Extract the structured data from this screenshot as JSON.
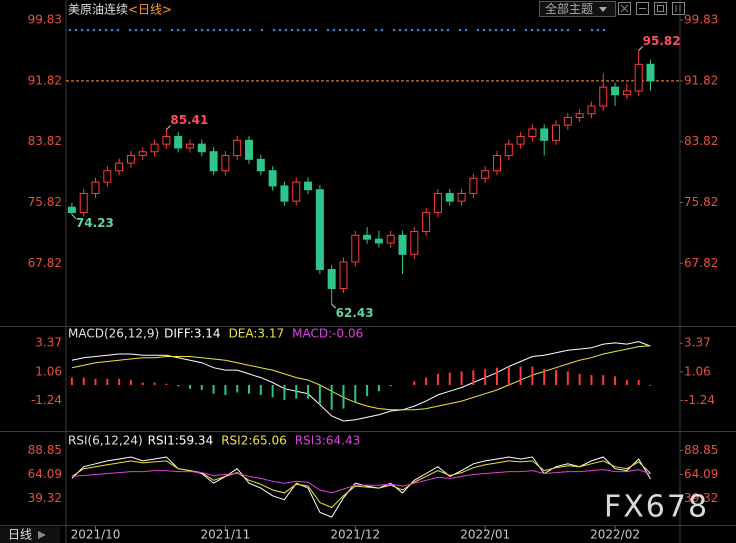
{
  "header": {
    "title": "美原油连续",
    "period": "<日线>",
    "theme_button": "全部主题"
  },
  "footer": {
    "period": "日线"
  },
  "watermark": "FX678",
  "chart_data": [
    {
      "type": "candlestick",
      "xlim": [
        -0.5,
        51.5
      ],
      "ylim": [
        59.7,
        101.15
      ],
      "yticks": [
        99.83,
        91.82,
        83.82,
        75.82,
        67.82
      ],
      "xticks": [
        {
          "value": 2,
          "label": "2021/10"
        },
        {
          "value": 13,
          "label": "2021/11"
        },
        {
          "value": 24,
          "label": "2021/12"
        },
        {
          "value": 35,
          "label": "2022/01"
        },
        {
          "value": 46,
          "label": "2022/02"
        }
      ],
      "up_color": "#ff3b3b",
      "down_color": "#2fc58a",
      "last_price": 91.82,
      "last_color": "#ff9a2e",
      "annotations": [
        {
          "index": 8,
          "value": 85.41,
          "position": "above",
          "color": "#ff4d5e"
        },
        {
          "index": 0,
          "value": 74.23,
          "position": "below",
          "color": "#5fd3a0"
        },
        {
          "index": 22,
          "value": 62.43,
          "position": "below",
          "color": "#5fd3a0"
        },
        {
          "index": 48,
          "value": 95.82,
          "position": "above",
          "color": "#ff4d5e"
        }
      ],
      "candles": [
        [
          75.2,
          75.8,
          74.23,
          74.5
        ],
        [
          74.5,
          77.6,
          74.0,
          77.0
        ],
        [
          77.0,
          79.1,
          76.4,
          78.5
        ],
        [
          78.5,
          80.6,
          77.9,
          80.0
        ],
        [
          80.0,
          81.6,
          79.4,
          81.0
        ],
        [
          81.0,
          82.6,
          80.4,
          82.0
        ],
        [
          82.0,
          83.1,
          81.4,
          82.5
        ],
        [
          82.5,
          84.1,
          81.9,
          83.5
        ],
        [
          83.5,
          85.41,
          82.9,
          84.5
        ],
        [
          84.5,
          85.1,
          82.4,
          83.0
        ],
        [
          83.0,
          84.1,
          82.4,
          83.5
        ],
        [
          83.5,
          84.1,
          81.9,
          82.5
        ],
        [
          82.5,
          83.1,
          79.4,
          80.0
        ],
        [
          80.0,
          82.6,
          79.4,
          82.0
        ],
        [
          82.0,
          84.6,
          81.4,
          84.0
        ],
        [
          84.0,
          84.6,
          80.9,
          81.5
        ],
        [
          81.5,
          82.1,
          79.4,
          80.0
        ],
        [
          80.0,
          80.6,
          77.4,
          78.0
        ],
        [
          78.0,
          78.6,
          75.4,
          76.0
        ],
        [
          76.0,
          79.1,
          75.4,
          78.5
        ],
        [
          78.5,
          79.1,
          76.9,
          77.5
        ],
        [
          77.5,
          78.1,
          66.4,
          67.0
        ],
        [
          67.0,
          67.6,
          62.43,
          64.5
        ],
        [
          64.5,
          68.6,
          63.9,
          68.0
        ],
        [
          68.0,
          72.1,
          67.4,
          71.5
        ],
        [
          71.5,
          72.6,
          70.4,
          71.0
        ],
        [
          71.0,
          72.1,
          69.9,
          70.5
        ],
        [
          70.5,
          72.1,
          69.9,
          71.5
        ],
        [
          71.5,
          72.1,
          66.4,
          69.0
        ],
        [
          69.0,
          72.6,
          68.4,
          72.0
        ],
        [
          72.0,
          75.1,
          71.4,
          74.5
        ],
        [
          74.5,
          77.6,
          73.9,
          77.0
        ],
        [
          77.0,
          77.6,
          75.4,
          76.0
        ],
        [
          76.0,
          77.6,
          75.4,
          77.0
        ],
        [
          77.0,
          79.6,
          76.4,
          79.0
        ],
        [
          79.0,
          80.6,
          78.4,
          80.0
        ],
        [
          80.0,
          82.6,
          79.4,
          82.0
        ],
        [
          82.0,
          84.1,
          81.4,
          83.5
        ],
        [
          83.5,
          85.1,
          82.9,
          84.5
        ],
        [
          84.5,
          86.1,
          83.9,
          85.5
        ],
        [
          85.5,
          86.1,
          82.0,
          84.0
        ],
        [
          84.0,
          86.6,
          83.4,
          86.0
        ],
        [
          86.0,
          87.6,
          85.4,
          87.0
        ],
        [
          87.0,
          88.1,
          86.4,
          87.5
        ],
        [
          87.5,
          89.1,
          86.9,
          88.5
        ],
        [
          88.5,
          92.8,
          87.9,
          91.0
        ],
        [
          91.0,
          91.6,
          88.5,
          90.0
        ],
        [
          90.0,
          91.5,
          89.4,
          90.5
        ],
        [
          90.5,
          95.82,
          89.9,
          94.0
        ],
        [
          94.0,
          94.6,
          90.5,
          91.82
        ]
      ]
    },
    {
      "type": "macd",
      "title": "MACD(26,12,9)",
      "ylim": [
        -3.63,
        4.6
      ],
      "yticks": [
        3.37,
        1.06,
        -1.24
      ],
      "up_color": "#ff3b3b",
      "down_color": "#2fc58a",
      "series": [
        {
          "name": "DIFF:3.14",
          "color": "#ffffff",
          "style": "line",
          "values": [
            2.0,
            2.2,
            2.3,
            2.4,
            2.5,
            2.5,
            2.4,
            2.4,
            2.4,
            2.2,
            2.0,
            1.8,
            1.4,
            1.2,
            1.2,
            0.9,
            0.6,
            0.2,
            -0.3,
            -0.5,
            -0.7,
            -1.6,
            -2.5,
            -2.9,
            -2.8,
            -2.6,
            -2.4,
            -2.1,
            -2.0,
            -1.7,
            -1.3,
            -0.8,
            -0.5,
            -0.2,
            0.2,
            0.6,
            1.0,
            1.5,
            1.9,
            2.3,
            2.4,
            2.6,
            2.8,
            2.9,
            3.0,
            3.3,
            3.4,
            3.3,
            3.5,
            3.14
          ]
        },
        {
          "name": "DEA:3.17",
          "color": "#f0e040",
          "style": "line",
          "values": [
            1.4,
            1.6,
            1.8,
            1.9,
            2.0,
            2.1,
            2.2,
            2.2,
            2.3,
            2.3,
            2.3,
            2.2,
            2.1,
            2.0,
            1.8,
            1.6,
            1.4,
            1.2,
            0.9,
            0.6,
            0.4,
            0.0,
            -0.5,
            -1.0,
            -1.4,
            -1.7,
            -1.9,
            -2.0,
            -2.0,
            -2.0,
            -1.9,
            -1.7,
            -1.5,
            -1.3,
            -1.0,
            -0.7,
            -0.4,
            0.0,
            0.4,
            0.8,
            1.1,
            1.4,
            1.7,
            2.0,
            2.2,
            2.5,
            2.7,
            2.9,
            3.1,
            3.17
          ]
        },
        {
          "name": "MACD:-0.06",
          "color": "#e040e0",
          "style": "histogram",
          "values": [
            0.6,
            0.6,
            0.5,
            0.5,
            0.5,
            0.4,
            0.2,
            0.2,
            0.1,
            -0.1,
            -0.3,
            -0.4,
            -0.7,
            -0.8,
            -0.6,
            -0.7,
            -0.8,
            -1.0,
            -1.2,
            -1.1,
            -1.1,
            -1.6,
            -2.0,
            -1.9,
            -1.4,
            -0.9,
            -0.5,
            -0.1,
            0.0,
            0.3,
            0.6,
            0.9,
            1.0,
            1.1,
            1.2,
            1.3,
            1.4,
            1.5,
            1.5,
            1.5,
            1.3,
            1.2,
            1.1,
            0.9,
            0.8,
            0.8,
            0.7,
            0.4,
            0.4,
            -0.06
          ]
        }
      ]
    },
    {
      "type": "rsi",
      "title": "RSI(6,12,24)",
      "ylim": [
        11.9,
        106.8
      ],
      "yticks": [
        88.85,
        64.09,
        39.32
      ],
      "series": [
        {
          "name": "RSI1:59.34",
          "color": "#ffffff",
          "values": [
            60,
            72,
            75,
            78,
            80,
            82,
            78,
            80,
            82,
            70,
            68,
            65,
            55,
            62,
            70,
            55,
            50,
            42,
            38,
            55,
            50,
            25,
            20,
            40,
            55,
            52,
            50,
            55,
            45,
            58,
            65,
            72,
            62,
            68,
            75,
            78,
            80,
            82,
            80,
            82,
            65,
            72,
            75,
            72,
            78,
            82,
            70,
            68,
            80,
            59.34
          ]
        },
        {
          "name": "RSI2:65.06",
          "color": "#f0e040",
          "values": [
            62,
            70,
            72,
            74,
            76,
            78,
            76,
            77,
            78,
            70,
            68,
            66,
            58,
            62,
            66,
            58,
            54,
            48,
            45,
            54,
            52,
            35,
            30,
            42,
            52,
            51,
            50,
            53,
            48,
            56,
            62,
            68,
            63,
            66,
            71,
            74,
            76,
            78,
            77,
            78,
            68,
            71,
            73,
            72,
            75,
            78,
            72,
            70,
            77,
            65.06
          ]
        },
        {
          "name": "RSI3:64.43",
          "color": "#e040e0",
          "values": [
            62,
            63,
            64,
            65,
            66,
            67,
            67,
            68,
            68,
            67,
            67,
            66,
            63,
            64,
            65,
            62,
            60,
            57,
            55,
            57,
            56,
            48,
            45,
            49,
            53,
            53,
            53,
            54,
            52,
            55,
            58,
            61,
            60,
            62,
            64,
            65,
            66,
            67,
            67,
            68,
            65,
            66,
            67,
            67,
            68,
            69,
            67,
            67,
            69,
            64.43
          ]
        }
      ]
    }
  ]
}
